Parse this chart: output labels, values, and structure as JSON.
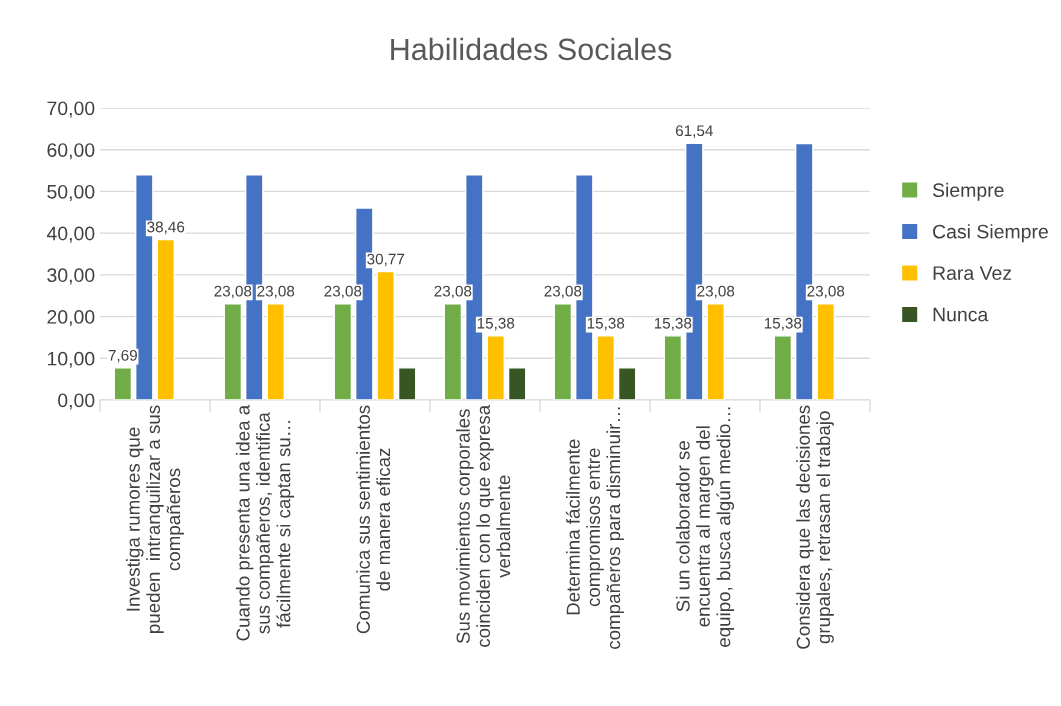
{
  "chart_data": {
    "type": "bar",
    "title": "Habilidades Sociales",
    "categories": [
      "Investiga rumores que\npueden  intranquilizar a sus\ncompañeros",
      "Cuando presenta una idea a\nsus compañeros, identifica\nfácilmente si captan su…",
      "Comunica sus sentimientos\nde manera eficaz",
      "Sus movimientos corporales\ncoinciden con lo que expresa\nverbalmente",
      "Determina fácilmente\ncompromisos entre\ncompañeros para disminuir…",
      "Si un colaborador se\nencuentra al margen del\nequipo, busca algún medio…",
      "Considera que las decisiones\ngrupales, retrasan el trabajo"
    ],
    "series": [
      {
        "name": "Siempre",
        "color": "#70ad47",
        "values": [
          7.69,
          23.08,
          23.08,
          23.08,
          23.08,
          15.38,
          15.38
        ],
        "value_labels": [
          "7,69",
          "23,08",
          "23,08",
          "23,08",
          "23,08",
          "15,38",
          "15,38"
        ]
      },
      {
        "name": "Casi Siempre",
        "color": "#4472c4",
        "values": [
          54,
          54,
          46,
          54,
          54,
          61.54,
          61.5
        ],
        "value_labels": [
          null,
          null,
          null,
          null,
          null,
          "61,54",
          null
        ]
      },
      {
        "name": "Rara Vez",
        "color": "#ffc000",
        "values": [
          38.46,
          23.08,
          30.77,
          15.38,
          15.38,
          23.08,
          23.08
        ],
        "value_labels": [
          "38,46",
          "23,08",
          "30,77",
          "15,38",
          "15,38",
          "23,08",
          "23,08"
        ]
      },
      {
        "name": "Nunca",
        "color": "#375623",
        "values": [
          null,
          null,
          7.7,
          7.7,
          7.7,
          null,
          null
        ]
      }
    ],
    "ylim": [
      0,
      70
    ],
    "yticks": [
      {
        "value": 0,
        "label": "0,00"
      },
      {
        "value": 10,
        "label": "10,00"
      },
      {
        "value": 20,
        "label": "20,00"
      },
      {
        "value": 30,
        "label": "30,00"
      },
      {
        "value": 40,
        "label": "40,00"
      },
      {
        "value": 50,
        "label": "50,00"
      },
      {
        "value": 60,
        "label": "60,00"
      },
      {
        "value": 70,
        "label": "70,00"
      }
    ],
    "grid": "y",
    "legend": "right"
  }
}
